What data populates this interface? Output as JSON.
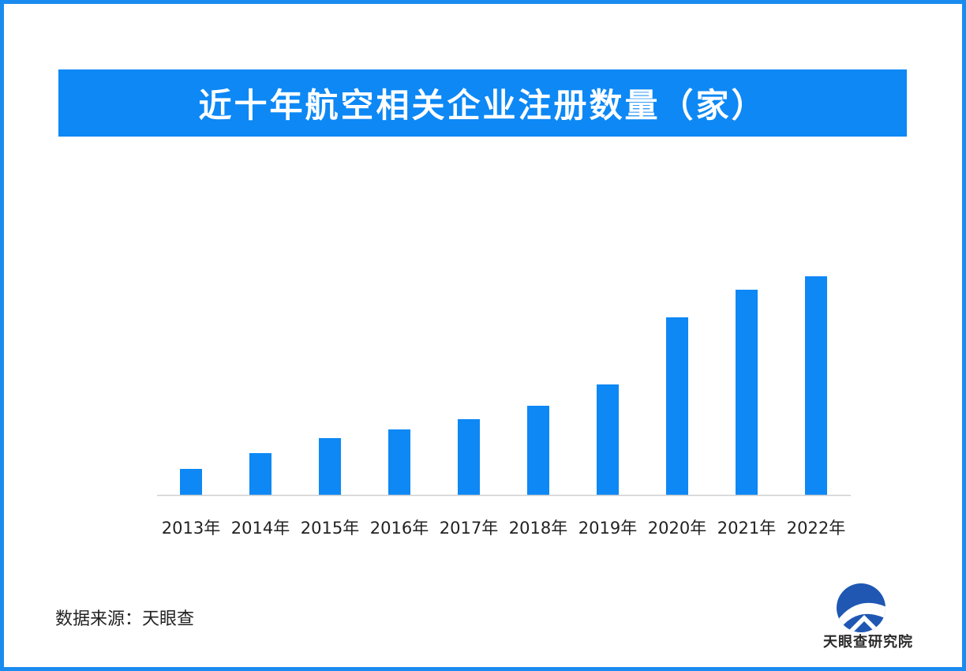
{
  "title": "近十年航空相关企业注册数量（家）",
  "source": "数据来源：天眼查",
  "logo_text": "天眼查研究院",
  "colors": {
    "bar": "#0d88f5",
    "border": "#1a8cf0",
    "axis": "#cfcfcf"
  },
  "chart_data": {
    "type": "bar",
    "title": "近十年航空相关企业注册数量（家）",
    "categories": [
      "2013年",
      "2014年",
      "2015年",
      "2016年",
      "2017年",
      "2018年",
      "2019年",
      "2020年",
      "2021年",
      "2022年"
    ],
    "values": [
      33,
      53,
      72,
      83,
      96,
      113,
      140,
      225,
      260,
      277
    ],
    "ylim": [
      0,
      300
    ],
    "xlabel": "",
    "ylabel": "",
    "grid": false,
    "value_labels": false
  }
}
